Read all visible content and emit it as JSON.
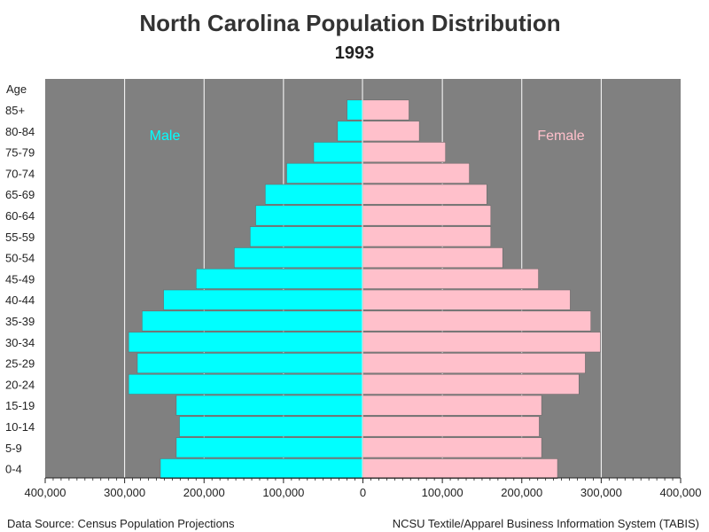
{
  "chart_data": {
    "type": "bar",
    "orientation": "horizontal",
    "layout": "population-pyramid",
    "title": "North Carolina Population Distribution",
    "subtitle": "1993",
    "age_axis_label": "Age",
    "categories": [
      "85+",
      "80-84",
      "75-79",
      "70-74",
      "65-69",
      "60-64",
      "55-59",
      "50-54",
      "45-49",
      "40-44",
      "35-39",
      "30-34",
      "25-29",
      "20-24",
      "15-19",
      "10-14",
      "5-9",
      "0-4"
    ],
    "series": [
      {
        "name": "Male",
        "color": "#00ffff",
        "values": [
          20000,
          32000,
          62000,
          96000,
          123000,
          135000,
          142000,
          162000,
          210000,
          251000,
          278000,
          295000,
          284000,
          295000,
          235000,
          231000,
          235000,
          255000
        ]
      },
      {
        "name": "Female",
        "color": "#ffc0cb",
        "values": [
          58000,
          71000,
          104000,
          134000,
          156000,
          161000,
          161000,
          176000,
          221000,
          261000,
          287000,
          299000,
          280000,
          272000,
          225000,
          222000,
          225000,
          245000
        ]
      }
    ],
    "xlim": [
      -400000,
      400000
    ],
    "x_ticks": [
      -400000,
      -300000,
      -200000,
      -100000,
      0,
      100000,
      200000,
      300000,
      400000
    ],
    "x_tick_labels": [
      "400,000",
      "300,000",
      "200,000",
      "100,000",
      "0",
      "100,000",
      "200,000",
      "300,000",
      "400,000"
    ],
    "grid": true,
    "plot_background": "#808080",
    "grid_color": "#ffffff"
  },
  "footer": {
    "left": "Data Source: Census Population Projections",
    "right": "NCSU Textile/Apparel Business Information System (TABIS)"
  }
}
